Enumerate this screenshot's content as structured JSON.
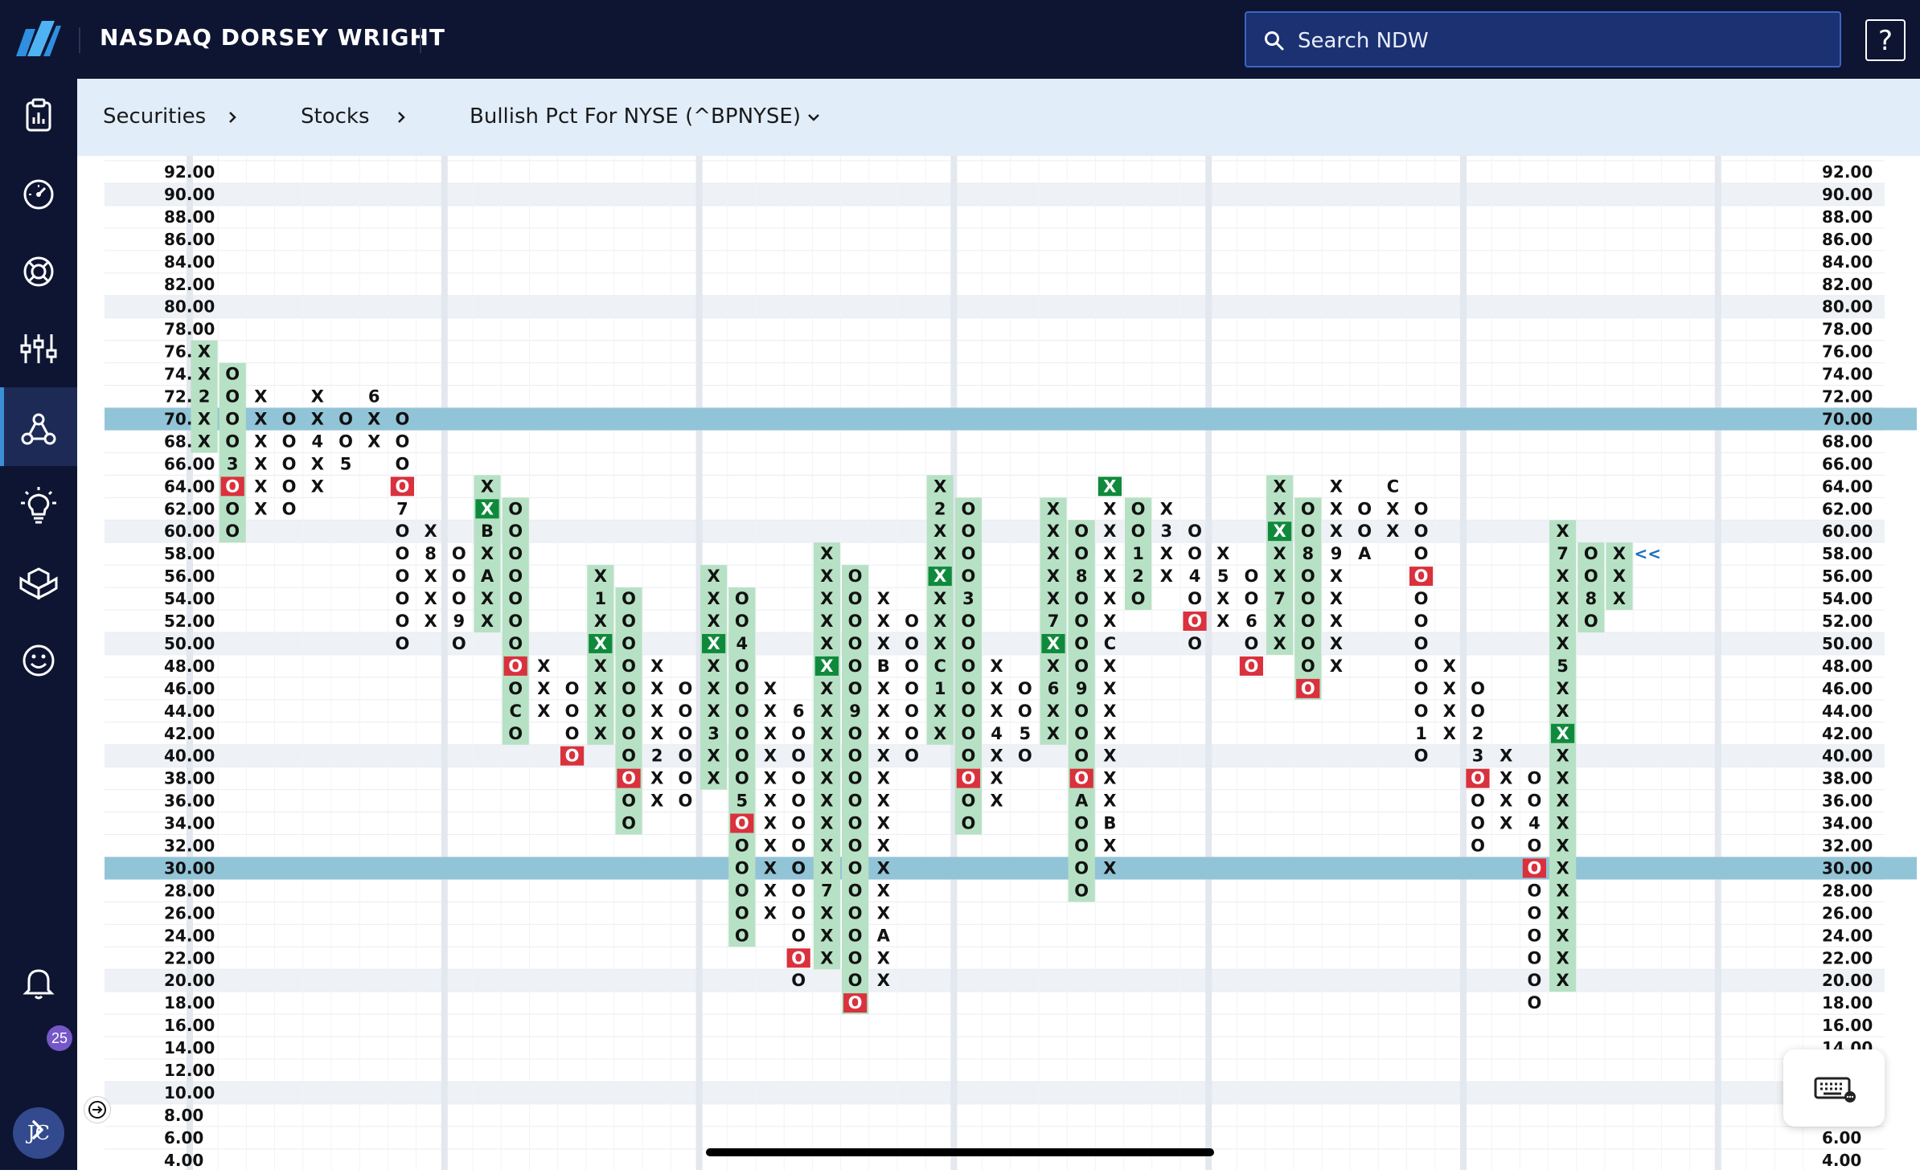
{
  "header": {
    "brand": "NASDAQ DORSEY WRIGHT",
    "search_placeholder": "Search NDW",
    "help_label": "?"
  },
  "sidebar": {
    "icons": [
      "reports-icon",
      "dashboard-icon",
      "lifebuoy-icon",
      "chart-tools-icon",
      "network-icon",
      "ideas-icon",
      "modules-icon",
      "smiley-icon",
      "bell-icon",
      "expand-icon"
    ],
    "notification_count": "25",
    "avatar_initials": "JC"
  },
  "breadcrumb": {
    "items": [
      "Securities",
      "Stocks",
      "Bullish Pct For NYSE (^BPNYSE)"
    ]
  },
  "colors": {
    "nav_bg": "#0e1532",
    "crumb_bg": "#e1edf9",
    "x_box": "#b7e1c4",
    "x_highlight": "#0f8a3c",
    "o_highlight": "#d9313d",
    "band": "#92c4d8"
  },
  "chart_data": {
    "type": "point-and-figure",
    "box_size": 2,
    "ylim": [
      4,
      92
    ],
    "y_ticks": [
      92,
      90,
      88,
      86,
      84,
      82,
      80,
      78,
      76,
      74,
      72,
      70,
      68,
      66,
      64,
      62,
      60,
      58,
      56,
      54,
      52,
      50,
      48,
      46,
      44,
      42,
      40,
      38,
      36,
      34,
      32,
      30,
      28,
      26,
      24,
      22,
      20,
      18,
      16,
      14,
      12,
      10,
      8,
      6,
      4
    ],
    "highlighted_levels": [
      70,
      30
    ],
    "current_marker": "<<",
    "columns": [
      {
        "type": "X",
        "low": 68,
        "high": 76,
        "labels": {
          "72": "2"
        },
        "fill": "green"
      },
      {
        "type": "O",
        "low": 60,
        "high": 74,
        "labels": {
          "66": "3"
        },
        "boxes": {
          "64": "red"
        },
        "fill": "green"
      },
      {
        "type": "X",
        "low": 62,
        "high": 72
      },
      {
        "type": "O",
        "low": 62,
        "high": 70
      },
      {
        "type": "X",
        "low": 64,
        "high": 72,
        "labels": {
          "68": "4"
        }
      },
      {
        "type": "O",
        "low": 66,
        "high": 70,
        "labels": {
          "66": "5"
        }
      },
      {
        "type": "X",
        "low": 68,
        "high": 72,
        "labels": {
          "72": "6"
        }
      },
      {
        "type": "O",
        "low": 50,
        "high": 70,
        "labels": {
          "62": "7"
        },
        "boxes": {
          "64": "red"
        }
      },
      {
        "type": "X",
        "low": 52,
        "high": 60,
        "labels": {
          "58": "8"
        }
      },
      {
        "type": "O",
        "low": 50,
        "high": 58,
        "labels": {
          "52": "9"
        }
      },
      {
        "type": "X",
        "low": 52,
        "high": 64,
        "labels": {
          "60": "B",
          "56": "A"
        },
        "boxes": {
          "62": "dark"
        },
        "fill": "green"
      },
      {
        "type": "O",
        "low": 42,
        "high": 62,
        "labels": {
          "44": "C"
        },
        "boxes": {
          "48": "red"
        },
        "fill": "green"
      },
      {
        "type": "X",
        "low": 44,
        "high": 48
      },
      {
        "type": "O",
        "low": 40,
        "high": 46,
        "boxes": {
          "40": "red"
        }
      },
      {
        "type": "X",
        "low": 42,
        "high": 56,
        "labels": {
          "54": "1"
        },
        "boxes": {
          "50": "dark"
        },
        "fill": "green"
      },
      {
        "type": "O",
        "low": 34,
        "high": 54,
        "boxes": {
          "38": "red"
        },
        "fill": "green"
      },
      {
        "type": "X",
        "low": 36,
        "high": 48,
        "labels": {
          "40": "2"
        }
      },
      {
        "type": "O",
        "low": 36,
        "high": 46
      },
      {
        "type": "X",
        "low": 38,
        "high": 56,
        "labels": {
          "42": "3"
        },
        "boxes": {
          "50": "dark"
        },
        "fill": "green"
      },
      {
        "type": "O",
        "low": 24,
        "high": 54,
        "labels": {
          "50": "4",
          "36": "5"
        },
        "boxes": {
          "34": "red"
        },
        "fill": "green"
      },
      {
        "type": "X",
        "low": 26,
        "high": 46
      },
      {
        "type": "O",
        "low": 20,
        "high": 44,
        "labels": {
          "44": "6"
        },
        "boxes": {
          "22": "red"
        }
      },
      {
        "type": "X",
        "low": 22,
        "high": 58,
        "labels": {
          "28": "7"
        },
        "boxes": {
          "48": "dark"
        },
        "fill": "green"
      },
      {
        "type": "O",
        "low": 18,
        "high": 56,
        "labels": {
          "44": "9"
        },
        "boxes": {
          "18": "red"
        },
        "fill": "green"
      },
      {
        "type": "X",
        "low": 20,
        "high": 54,
        "labels": {
          "48": "B",
          "24": "A"
        }
      },
      {
        "type": "O",
        "low": 40,
        "high": 52
      },
      {
        "type": "X",
        "low": 42,
        "high": 64,
        "labels": {
          "62": "2",
          "48": "C",
          "46": "1"
        },
        "boxes": {
          "56": "dark"
        },
        "fill": "green"
      },
      {
        "type": "O",
        "low": 34,
        "high": 62,
        "labels": {
          "54": "3"
        },
        "boxes": {
          "38": "red"
        },
        "fill": "green"
      },
      {
        "type": "X",
        "low": 36,
        "high": 48,
        "labels": {
          "42": "4"
        }
      },
      {
        "type": "O",
        "low": 40,
        "high": 46,
        "labels": {
          "42": "5"
        }
      },
      {
        "type": "X",
        "low": 42,
        "high": 62,
        "labels": {
          "52": "7",
          "46": "6"
        },
        "boxes": {
          "50": "dark"
        },
        "fill": "green"
      },
      {
        "type": "O",
        "low": 28,
        "high": 60,
        "labels": {
          "56": "8",
          "46": "9",
          "36": "A"
        },
        "boxes": {
          "38": "red"
        },
        "fill": "green"
      },
      {
        "type": "X",
        "low": 30,
        "high": 64,
        "labels": {
          "50": "C",
          "34": "B"
        },
        "boxes": {
          "64": "dark"
        }
      },
      {
        "type": "O",
        "low": 54,
        "high": 62,
        "labels": {
          "58": "1",
          "56": "2"
        },
        "fill": "green"
      },
      {
        "type": "X",
        "low": 56,
        "high": 62,
        "labels": {
          "60": "3"
        }
      },
      {
        "type": "O",
        "low": 50,
        "high": 60,
        "labels": {
          "56": "4"
        },
        "boxes": {
          "52": "red"
        }
      },
      {
        "type": "X",
        "low": 52,
        "high": 58,
        "labels": {
          "56": "5"
        }
      },
      {
        "type": "O",
        "low": 48,
        "high": 56,
        "labels": {
          "52": "6"
        },
        "boxes": {
          "48": "red"
        }
      },
      {
        "type": "X",
        "low": 50,
        "high": 64,
        "labels": {
          "54": "7"
        },
        "boxes": {
          "60": "dark"
        },
        "fill": "green"
      },
      {
        "type": "O",
        "low": 46,
        "high": 62,
        "labels": {
          "58": "8"
        },
        "boxes": {
          "46": "red"
        },
        "fill": "green"
      },
      {
        "type": "X",
        "low": 48,
        "high": 64,
        "labels": {
          "58": "9"
        }
      },
      {
        "type": "O",
        "low": 58,
        "high": 62,
        "labels": {
          "58": "A"
        }
      },
      {
        "type": "X",
        "low": 60,
        "high": 64,
        "labels": {
          "64": "C"
        }
      },
      {
        "type": "O",
        "low": 40,
        "high": 62,
        "labels": {
          "42": "1"
        },
        "boxes": {
          "56": "red"
        }
      },
      {
        "type": "X",
        "low": 42,
        "high": 48
      },
      {
        "type": "O",
        "low": 32,
        "high": 46,
        "labels": {
          "42": "2",
          "40": "3"
        },
        "boxes": {
          "38": "red"
        }
      },
      {
        "type": "X",
        "low": 34,
        "high": 40
      },
      {
        "type": "O",
        "low": 18,
        "high": 38,
        "labels": {
          "34": "4"
        },
        "boxes": {
          "30": "red"
        }
      },
      {
        "type": "X",
        "low": 20,
        "high": 60,
        "labels": {
          "58": "7",
          "48": "5"
        },
        "boxes": {
          "42": "dark"
        },
        "fill": "green"
      },
      {
        "type": "O",
        "low": 52,
        "high": 58,
        "labels": {
          "54": "8"
        },
        "fill": "green"
      },
      {
        "type": "X",
        "low": 54,
        "high": 58,
        "fill": "green"
      }
    ]
  }
}
